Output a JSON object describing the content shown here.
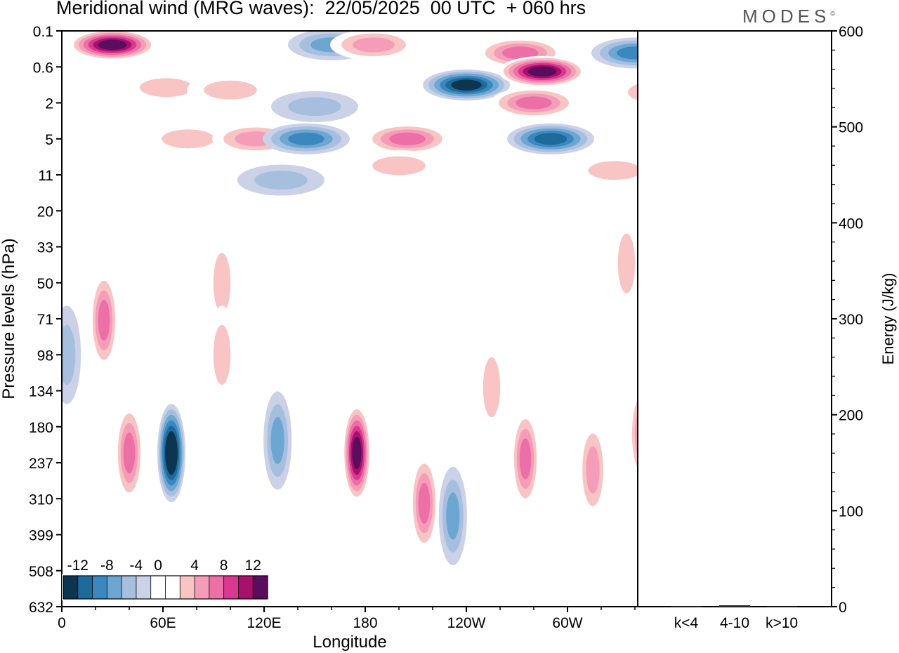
{
  "figure": {
    "title": "Meridional wind (MRG waves):  22/05/2025  00 UTC  + 060 hrs",
    "brand": "MODES",
    "brand_mark": "©"
  },
  "chart_data": [
    {
      "type": "heatmap",
      "name_in_image": "",
      "xlabel": "Longitude",
      "ylabel": "Pressure levels (hPa)",
      "x_ticks": [
        "0",
        "60E",
        "120E",
        "180",
        "120W",
        "60W"
      ],
      "x_tick_values": [
        0,
        60,
        120,
        180,
        240,
        300
      ],
      "xlim": [
        0,
        360
      ],
      "y_ticks": [
        "0.1",
        "0.6",
        "2",
        "5",
        "11",
        "20",
        "33",
        "50",
        "71",
        "98",
        "134",
        "180",
        "237",
        "310",
        "399",
        "508",
        "632"
      ],
      "colorbar": {
        "labels": [
          "-12",
          "-8",
          "-4",
          "0",
          "4",
          "8",
          "12"
        ],
        "levels": [
          -14,
          -12,
          -10,
          -8,
          -6,
          -4,
          -2,
          2,
          4,
          6,
          8,
          10,
          12,
          14
        ],
        "colors": [
          "#0d3550",
          "#1e6a9a",
          "#3a88bf",
          "#6ea6d2",
          "#a6bfdf",
          "#cbd1e6",
          "#ffffff",
          "#ffffff",
          "#f8c4c4",
          "#f49cb8",
          "#ec6fa6",
          "#d9388f",
          "#a8106e",
          "#5a0d5c"
        ]
      },
      "features": [
        {
          "lon": 30,
          "level": 0.2,
          "value": 14
        },
        {
          "lon": 62,
          "level": 1.2,
          "value": 4
        },
        {
          "lon": 75,
          "level": 5,
          "value": 5
        },
        {
          "lon": 100,
          "level": 1.3,
          "value": 4
        },
        {
          "lon": 115,
          "level": 5,
          "value": 6
        },
        {
          "lon": 145,
          "level": 5,
          "value": -8
        },
        {
          "lon": 150,
          "level": 2.2,
          "value": -5
        },
        {
          "lon": 130,
          "level": 12,
          "value": -4
        },
        {
          "lon": 160,
          "level": 0.2,
          "value": -6
        },
        {
          "lon": 185,
          "level": 0.2,
          "value": 6
        },
        {
          "lon": 205,
          "level": 5,
          "value": 8
        },
        {
          "lon": 200,
          "level": 9,
          "value": 4
        },
        {
          "lon": 240,
          "level": 1.1,
          "value": -12
        },
        {
          "lon": 272,
          "level": 0.3,
          "value": 9
        },
        {
          "lon": 285,
          "level": 0.7,
          "value": 14
        },
        {
          "lon": 280,
          "level": 2,
          "value": 8
        },
        {
          "lon": 290,
          "level": 5,
          "value": -10
        },
        {
          "lon": 340,
          "level": 0.3,
          "value": -8
        },
        {
          "lon": 355,
          "level": 1.4,
          "value": 6
        },
        {
          "lon": 328,
          "level": 10,
          "value": 4
        },
        {
          "lon": 95,
          "level": 50,
          "value": 5
        },
        {
          "lon": 335,
          "level": 40,
          "value": 4
        },
        {
          "lon": 25,
          "level": 72,
          "value": 8
        },
        {
          "lon": 3,
          "level": 98,
          "value": -5
        },
        {
          "lon": 40,
          "level": 220,
          "value": 9
        },
        {
          "lon": 65,
          "level": 220,
          "value": -14
        },
        {
          "lon": 95,
          "level": 98,
          "value": 4
        },
        {
          "lon": 128,
          "level": 200,
          "value": -6
        },
        {
          "lon": 175,
          "level": 220,
          "value": 14
        },
        {
          "lon": 215,
          "level": 320,
          "value": 9
        },
        {
          "lon": 232,
          "level": 350,
          "value": -6
        },
        {
          "lon": 255,
          "level": 130,
          "value": 5
        },
        {
          "lon": 275,
          "level": 230,
          "value": 8
        },
        {
          "lon": 315,
          "level": 250,
          "value": 7
        },
        {
          "lon": 345,
          "level": 190,
          "value": 8
        },
        {
          "lon": 358,
          "level": 110,
          "value": -4
        }
      ]
    },
    {
      "type": "bar",
      "ylabel": "Energy (J/kg)",
      "categories": [
        "k<4",
        "4-10",
        "k>10"
      ],
      "values": [
        0.5,
        1.5,
        0.3
      ],
      "ylim": [
        0,
        600
      ],
      "y_ticks": [
        "0",
        "100",
        "200",
        "300",
        "400",
        "500",
        "600"
      ]
    }
  ]
}
